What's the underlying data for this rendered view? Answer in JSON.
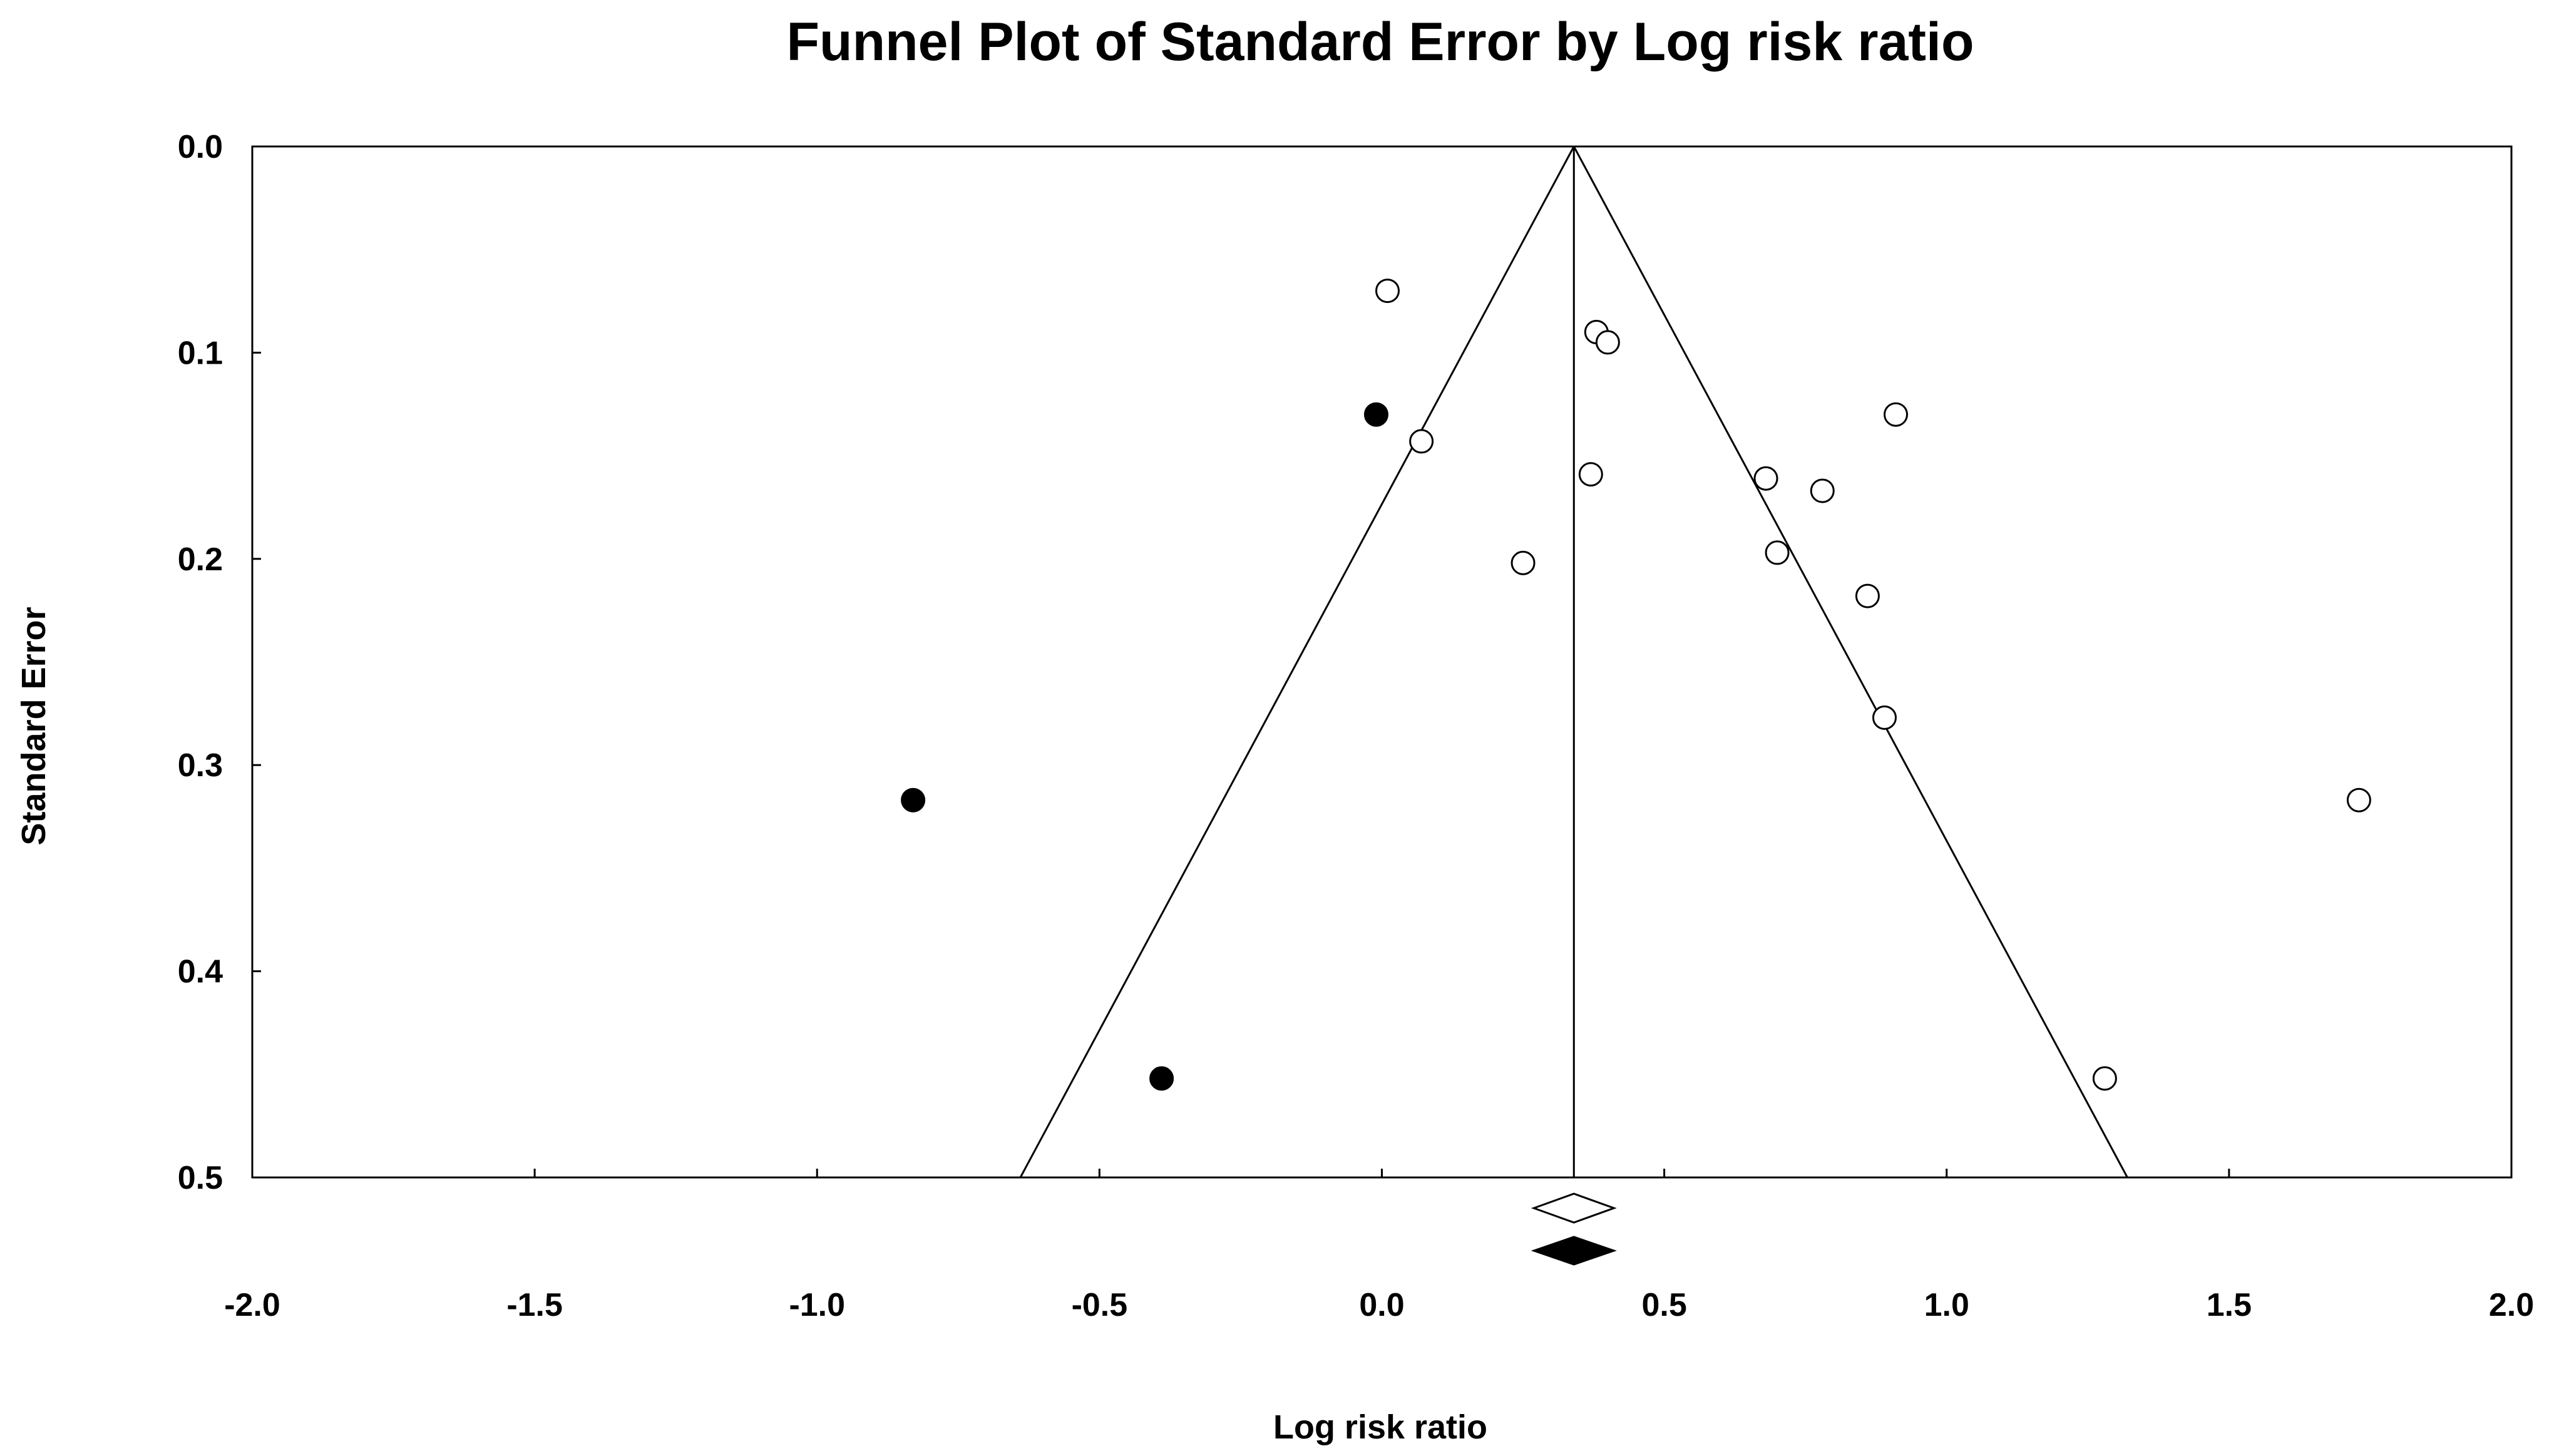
{
  "chart_data": {
    "type": "scatter",
    "title": "Funnel Plot of Standard Error by Log risk ratio",
    "xlabel": "Log risk ratio",
    "ylabel": "Standard Error",
    "xlim": [
      -2.0,
      2.0
    ],
    "ylim": [
      0.0,
      0.5
    ],
    "y_inverted": true,
    "x_ticks": [
      "-2.0",
      "-1.5",
      "-1.0",
      "-0.5",
      "0.0",
      "0.5",
      "1.0",
      "1.5",
      "2.0"
    ],
    "y_ticks": [
      "0.0",
      "0.1",
      "0.2",
      "0.3",
      "0.4",
      "0.5"
    ],
    "grid": false,
    "pooled_estimate": 0.34,
    "adjusted_estimate": 0.34,
    "series": [
      {
        "style": "open-circle",
        "points": [
          {
            "x": 0.01,
            "y": 0.07
          },
          {
            "x": 0.38,
            "y": 0.09
          },
          {
            "x": 0.4,
            "y": 0.095
          },
          {
            "x": 0.91,
            "y": 0.13
          },
          {
            "x": 0.07,
            "y": 0.143
          },
          {
            "x": 0.37,
            "y": 0.159
          },
          {
            "x": 0.68,
            "y": 0.161
          },
          {
            "x": 0.78,
            "y": 0.167
          },
          {
            "x": 0.25,
            "y": 0.202
          },
          {
            "x": 0.7,
            "y": 0.197
          },
          {
            "x": 0.86,
            "y": 0.218
          },
          {
            "x": 0.89,
            "y": 0.277
          },
          {
            "x": 1.73,
            "y": 0.317
          },
          {
            "x": 1.28,
            "y": 0.452
          }
        ]
      },
      {
        "style": "filled-circle",
        "points": [
          {
            "x": -0.01,
            "y": 0.13
          },
          {
            "x": -0.83,
            "y": 0.317
          },
          {
            "x": -0.39,
            "y": 0.452
          }
        ]
      }
    ],
    "colors": {
      "line": "#000000",
      "open_fill": "#ffffff",
      "filled": "#000000"
    }
  }
}
